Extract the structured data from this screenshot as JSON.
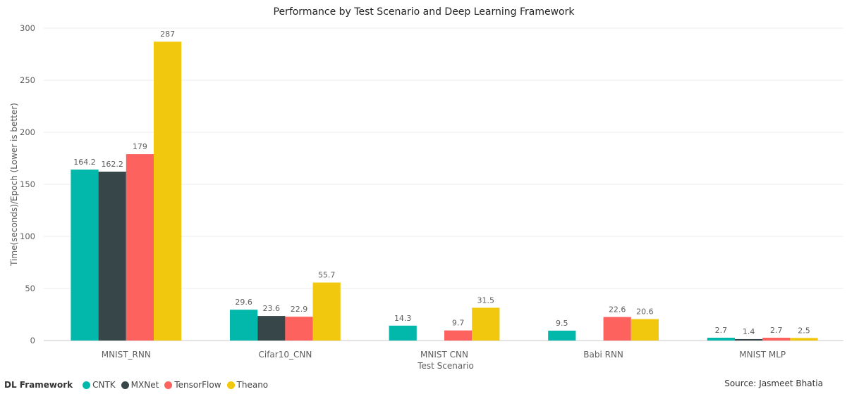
{
  "chart_data": {
    "type": "bar",
    "title": "Performance by Test Scenario and Deep Learning Framework",
    "xlabel": "Test Scenario",
    "ylabel": "Time(seconds)/Epoch (Lower is better)",
    "ylim": [
      0,
      300
    ],
    "yticks": [
      0,
      50,
      100,
      150,
      200,
      250,
      300
    ],
    "grid": true,
    "legend_position": "bottom-left",
    "categories": [
      "MNIST_RNN",
      "Cifar10_CNN",
      "MNIST CNN",
      "Babi RNN",
      "MNIST MLP"
    ],
    "series": [
      {
        "name": "CNTK",
        "color": "#01b8aa",
        "values": [
          164.2,
          29.6,
          14.3,
          9.5,
          2.7
        ]
      },
      {
        "name": "MXNet",
        "color": "#374649",
        "values": [
          162.2,
          23.6,
          null,
          null,
          1.4
        ]
      },
      {
        "name": "TensorFlow",
        "color": "#fd625e",
        "values": [
          179,
          22.9,
          9.7,
          22.6,
          2.7
        ]
      },
      {
        "name": "Theano",
        "color": "#f2c80f",
        "values": [
          287,
          55.7,
          31.5,
          20.6,
          2.5
        ]
      }
    ]
  },
  "legend": {
    "title": "DL Framework",
    "items": [
      "CNTK",
      "MXNet",
      "TensorFlow",
      "Theano"
    ]
  },
  "footer": {
    "source": "Source: Jasmeet Bhatia"
  }
}
